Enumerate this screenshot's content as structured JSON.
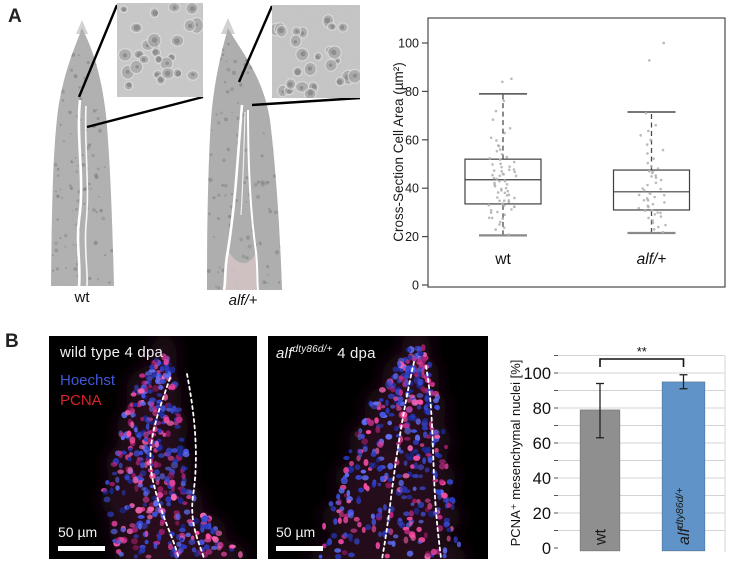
{
  "figure": {
    "panel_a_label": "A",
    "panel_b_label": "B"
  },
  "panel_a": {
    "specimen_labels": [
      "wt",
      "alf/+"
    ]
  },
  "panel_b": {
    "image_wt": {
      "title": "wild type 4 dpa",
      "legend": [
        {
          "label": "Hoechst",
          "color": "#4058d8"
        },
        {
          "label": "PCNA",
          "color": "#da2328"
        }
      ],
      "scalebar_label": "50 µm"
    },
    "image_alf": {
      "title_gene": "alf",
      "title_sup": "dty86d/+",
      "title_rest": " 4 dpa",
      "scalebar_label": "50 µm"
    }
  },
  "chart_data": [
    {
      "id": "cross-section-cell-area-boxplot",
      "type": "boxplot",
      "title": "",
      "ylabel": "Cross-Section Cell Area (µm²)",
      "ylim": [
        0,
        110
      ],
      "yticks": [
        0,
        20,
        40,
        60,
        80,
        100
      ],
      "grid": false,
      "categories": [
        "wt",
        "alf/+"
      ],
      "categories_italic": [
        false,
        true
      ],
      "boxes": [
        {
          "category": "wt",
          "whisker_low": 20.5,
          "q1": 33.5,
          "median": 43.5,
          "q3": 52,
          "whisker_high": 79
        },
        {
          "category": "alf/+",
          "whisker_low": 21.5,
          "q1": 31,
          "median": 38.5,
          "q3": 47.5,
          "whisker_high": 71.5
        }
      ],
      "points": {
        "wt": [
          21,
          23,
          24,
          25,
          26,
          27,
          28,
          28,
          29,
          30,
          30,
          31,
          31,
          32,
          32,
          33,
          33,
          34,
          34,
          35,
          35,
          35,
          36,
          36,
          37,
          37,
          38,
          38,
          39,
          39,
          40,
          40,
          41,
          41,
          42,
          42,
          43,
          43,
          43,
          44,
          44,
          45,
          45,
          45,
          46,
          46,
          47,
          47,
          47,
          48,
          48,
          49,
          49,
          50,
          50,
          51,
          52,
          52,
          53,
          54,
          55,
          56,
          57,
          58,
          60,
          61,
          63,
          65,
          68,
          72,
          76,
          84,
          85
        ],
        "alf/+": [
          22,
          23,
          24,
          25,
          26,
          27,
          28,
          28,
          29,
          30,
          30,
          31,
          31,
          32,
          32,
          33,
          33,
          34,
          35,
          35,
          36,
          36,
          37,
          37,
          38,
          38,
          39,
          40,
          40,
          41,
          42,
          43,
          44,
          45,
          45,
          46,
          47,
          47,
          48,
          49,
          50,
          52,
          54,
          56,
          58,
          60,
          62,
          64,
          66,
          71,
          93,
          100
        ]
      },
      "point_color": "#b4b4b4"
    },
    {
      "id": "pcna-positive-nuclei-bar",
      "type": "bar",
      "title": "",
      "ylabel": "PCNA⁺ mesenchymal nuclei [%]",
      "ylim": [
        0,
        111
      ],
      "yticks": [
        0,
        20,
        40,
        60,
        80,
        100
      ],
      "grid": true,
      "categories": [
        {
          "text": "wt",
          "italic": false,
          "sup": ""
        },
        {
          "text": "alf",
          "italic": true,
          "sup": "dty86d/+"
        }
      ],
      "values": [
        79,
        95
      ],
      "error_low": [
        16,
        4
      ],
      "error_high": [
        15,
        4
      ],
      "bar_colors": [
        "#8f8f8f",
        "#6094c8"
      ],
      "significance": "**"
    }
  ]
}
